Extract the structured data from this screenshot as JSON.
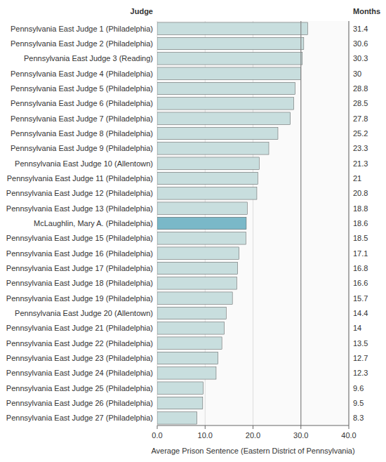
{
  "chart_data": {
    "type": "bar",
    "orientation": "horizontal",
    "categories": [
      "Pennsylvania East Judge 1 (Philadelphia)",
      "Pennsylvania East Judge 2 (Philadelphia)",
      "Pennsylvania East Judge 3 (Reading)",
      "Pennsylvania East Judge 4 (Philadelphia)",
      "Pennsylvania East Judge 5 (Philadelphia)",
      "Pennsylvania East Judge 6 (Philadelphia)",
      "Pennsylvania East Judge 7 (Philadelphia)",
      "Pennsylvania East Judge 8 (Philadelphia)",
      "Pennsylvania East Judge 9 (Philadelphia)",
      "Pennsylvania East Judge 10 (Allentown)",
      "Pennsylvania East Judge 11 (Philadelphia)",
      "Pennsylvania East Judge 12 (Philadelphia)",
      "Pennsylvania East Judge 13 (Philadelphia)",
      "McLaughlin, Mary A. (Philadelphia)",
      "Pennsylvania East Judge 15 (Philadelphia)",
      "Pennsylvania East Judge 16 (Philadelphia)",
      "Pennsylvania East Judge 17 (Philadelphia)",
      "Pennsylvania East Judge 18 (Philadelphia)",
      "Pennsylvania East Judge 19 (Philadelphia)",
      "Pennsylvania East Judge 20 (Allentown)",
      "Pennsylvania East Judge 21 (Philadelphia)",
      "Pennsylvania East Judge 22 (Philadelphia)",
      "Pennsylvania East Judge 23 (Philadelphia)",
      "Pennsylvania East Judge 24 (Philadelphia)",
      "Pennsylvania East Judge 25 (Philadelphia)",
      "Pennsylvania East Judge 26 (Philadelphia)",
      "Pennsylvania East Judge 27 (Philadelphia)"
    ],
    "values": [
      31.4,
      30.6,
      30.3,
      30.0,
      28.8,
      28.5,
      27.8,
      25.2,
      23.3,
      21.3,
      21.0,
      20.8,
      18.8,
      18.6,
      18.5,
      17.1,
      16.8,
      16.6,
      15.7,
      14.4,
      14.0,
      13.5,
      12.7,
      12.3,
      9.6,
      9.5,
      8.3
    ],
    "colors": [
      "#c8dede",
      "#c8dede",
      "#c8dede",
      "#c8dede",
      "#c8dede",
      "#c8dede",
      "#c8dede",
      "#c8dede",
      "#c8dede",
      "#c8dede",
      "#c8dede",
      "#c8dede",
      "#c8dede",
      "#7ab8c8",
      "#c8dede",
      "#c8dede",
      "#c8dede",
      "#c8dede",
      "#c8dede",
      "#c8dede",
      "#c8dede",
      "#c8dede",
      "#c8dede",
      "#c8dede",
      "#c8dede",
      "#c8dede",
      "#c8dede"
    ],
    "xlabel": "Average Prison Sentence (Eastern District of Pennsylvania)",
    "ylabel": "Judge",
    "y2label": "Months",
    "xlim": [
      0,
      40.0
    ],
    "xticks": [
      {
        "value": 0.0,
        "label": "0.0"
      },
      {
        "value": 10.0,
        "label": "10.0"
      },
      {
        "value": 20.0,
        "label": "20.0"
      },
      {
        "value": 30.0,
        "label": "30.0"
      },
      {
        "value": 40.0,
        "label": "40.0"
      }
    ],
    "reference_line": 30.0,
    "grid": true,
    "data_labels": true
  }
}
